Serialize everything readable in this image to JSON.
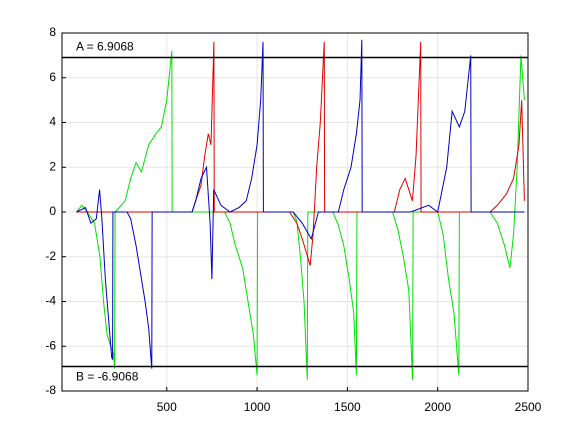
{
  "chart_data": {
    "type": "line",
    "xlim": [
      -80,
      2500
    ],
    "xticks": [
      500,
      1000,
      1500,
      2000,
      2500
    ],
    "ylim": [
      -8,
      8
    ],
    "yticks": [
      -8,
      -6,
      -4,
      -2,
      0,
      2,
      4,
      6,
      8
    ],
    "grid": true,
    "thresholds": [
      {
        "label": "A = 6.9068",
        "value": 6.9068
      },
      {
        "label": "B = -6.9068",
        "value": -6.9068
      }
    ],
    "series": [
      {
        "color": "#00e000",
        "x": [
          0,
          30,
          60,
          100,
          130,
          150,
          170,
          190,
          205,
          211,
          214,
          270,
          300,
          330,
          360,
          400,
          440,
          470,
          500,
          528,
          530,
          820,
          850,
          880,
          920,
          950,
          980,
          1000,
          1003,
          1200,
          1220,
          1240,
          1260,
          1278,
          1281,
          1420,
          1450,
          1480,
          1510,
          1535,
          1550,
          1553,
          1750,
          1780,
          1810,
          1840,
          1861,
          1864,
          2000,
          2030,
          2060,
          2090,
          2117,
          2120,
          2290,
          2330,
          2370,
          2400,
          2420,
          2440,
          2461,
          2480
        ],
        "values": [
          0,
          0.3,
          0,
          -0.5,
          -2,
          -4,
          -5.5,
          -6,
          -6.3,
          -7,
          0,
          0.5,
          1.5,
          2.2,
          1.8,
          3,
          3.5,
          3.8,
          5,
          7.2,
          0,
          0,
          -0.5,
          -1.5,
          -2.5,
          -4,
          -5.5,
          -7.3,
          0,
          0,
          -0.4,
          -2,
          -4,
          -7.5,
          0,
          0,
          -0.6,
          -1.5,
          -3,
          -4.5,
          -7.3,
          0,
          0,
          -0.8,
          -2,
          -3.5,
          -7.5,
          0,
          0,
          -1,
          -3,
          -4.5,
          -7.3,
          0,
          0,
          -0.5,
          -1.5,
          -2.5,
          -1,
          2,
          7,
          5
        ]
      },
      {
        "color": "#e00000",
        "x": [
          0,
          640,
          660,
          690,
          710,
          730,
          745,
          761,
          763,
          1180,
          1220,
          1250,
          1280,
          1294,
          1310,
          1330,
          1350,
          1372,
          1374,
          1760,
          1790,
          1820,
          1860,
          1880,
          1906,
          1908,
          2290,
          2330,
          2380,
          2420,
          2450,
          2465,
          2480
        ],
        "values": [
          0,
          0,
          0.5,
          1.2,
          2.5,
          3.5,
          3,
          7.6,
          0,
          0,
          -0.5,
          -1.2,
          -2,
          -2.4,
          -1,
          2,
          4,
          7.6,
          0,
          0,
          1,
          1.5,
          0.5,
          2.5,
          7.6,
          0,
          0,
          0.3,
          0.8,
          1.5,
          3,
          5,
          0.5
        ]
      },
      {
        "color": "#0000c0",
        "x": [
          0,
          50,
          80,
          110,
          128,
          140,
          160,
          180,
          195,
          200,
          202,
          280,
          300,
          330,
          350,
          380,
          400,
          417,
          419,
          640,
          660,
          690,
          720,
          740,
          750,
          760,
          800,
          850,
          900,
          940,
          970,
          1000,
          1020,
          1033,
          1035,
          1200,
          1250,
          1300,
          1340,
          1450,
          1480,
          1520,
          1550,
          1570,
          1580,
          1582,
          1850,
          1950,
          2000,
          2050,
          2080,
          2120,
          2150,
          2183,
          2185,
          2480
        ],
        "values": [
          0,
          0.2,
          -0.5,
          -0.3,
          1,
          -0.2,
          -3,
          -5,
          -6.5,
          -6.6,
          0,
          0,
          -0.3,
          -1.5,
          -2.5,
          -4,
          -5.2,
          -7,
          0,
          0,
          0.5,
          1.5,
          2,
          -0.5,
          -3,
          1,
          0.3,
          0,
          0.2,
          0.5,
          1.5,
          3,
          5,
          7.6,
          0,
          0,
          -0.5,
          -1.2,
          0,
          0,
          1,
          2,
          3.5,
          5,
          7.7,
          0,
          0,
          0.3,
          0,
          2,
          4.5,
          3.8,
          4.5,
          7,
          0,
          0
        ]
      }
    ]
  }
}
